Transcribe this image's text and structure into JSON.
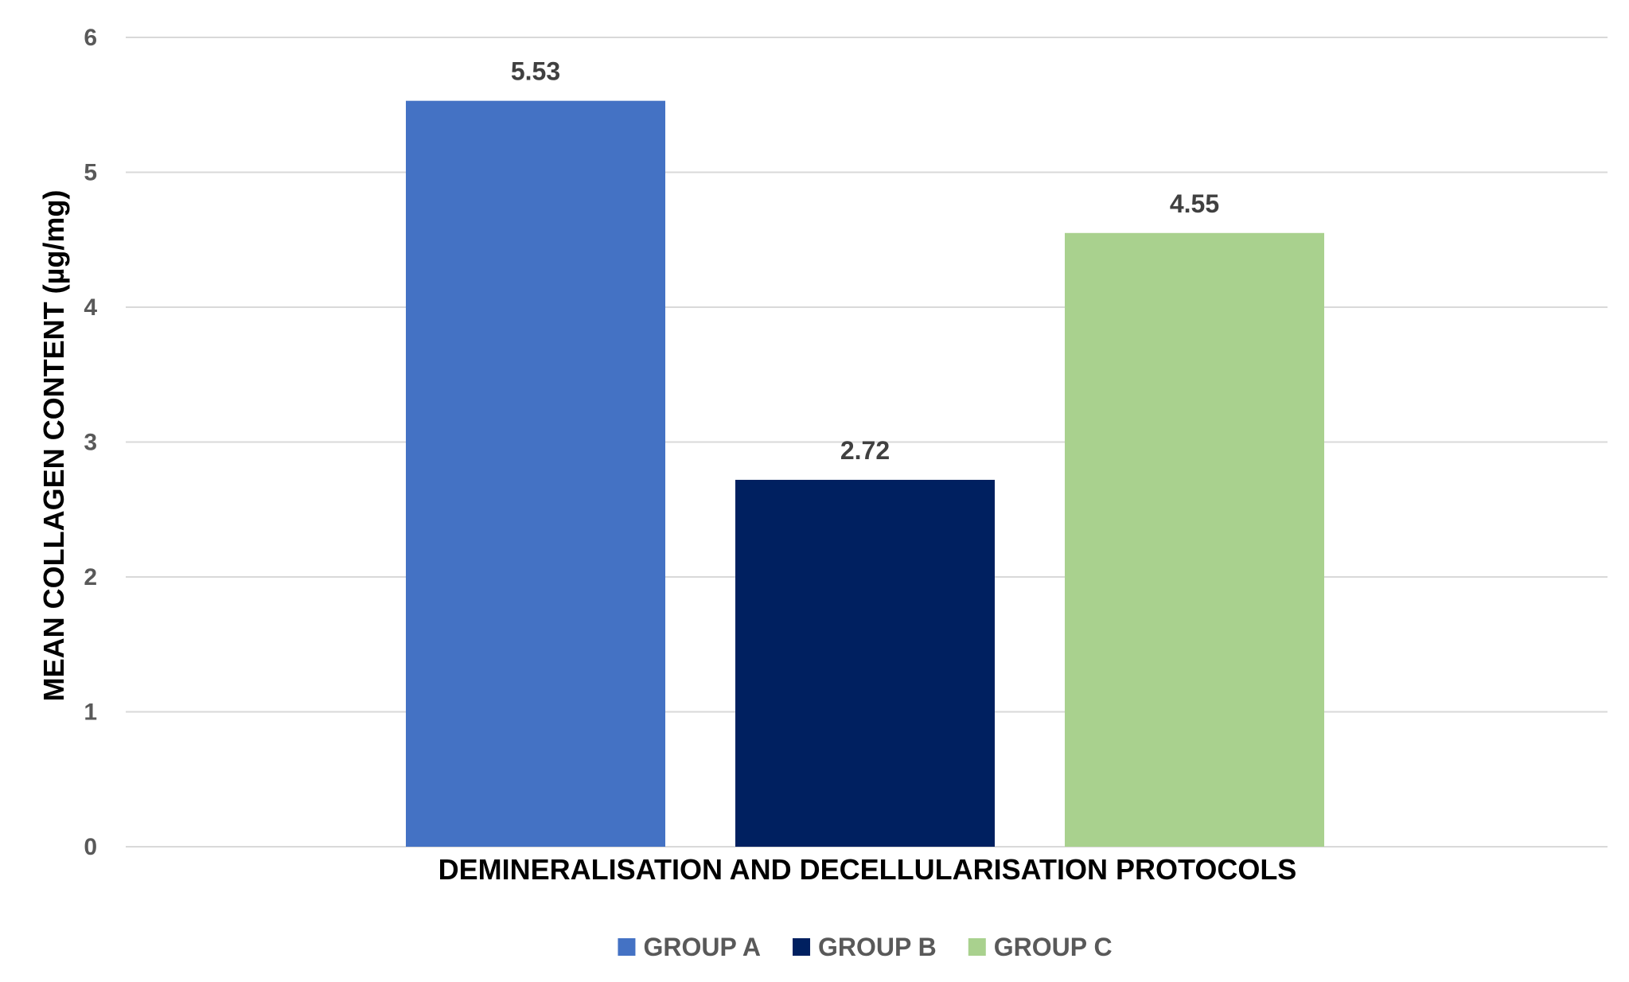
{
  "chart_data": {
    "type": "bar",
    "categories": [
      ""
    ],
    "series": [
      {
        "name": "GROUP A",
        "values": [
          5.53
        ],
        "color": "#4472C4"
      },
      {
        "name": "GROUP B",
        "values": [
          2.72
        ],
        "color": "#002060"
      },
      {
        "name": "GROUP C",
        "values": [
          4.55
        ],
        "color": "#A9D18E"
      }
    ],
    "data_labels": [
      "5.53",
      "2.72",
      "4.55"
    ],
    "xlabel": "DEMINERALISATION AND DECELLULARISATION PROTOCOLS",
    "ylabel": "MEAN COLLAGEN CONTENT (µg/mg)",
    "ylim": [
      0,
      6
    ],
    "yticks": [
      "0",
      "1",
      "2",
      "3",
      "4",
      "5",
      "6"
    ],
    "grid": true,
    "legend_position": "bottom"
  }
}
